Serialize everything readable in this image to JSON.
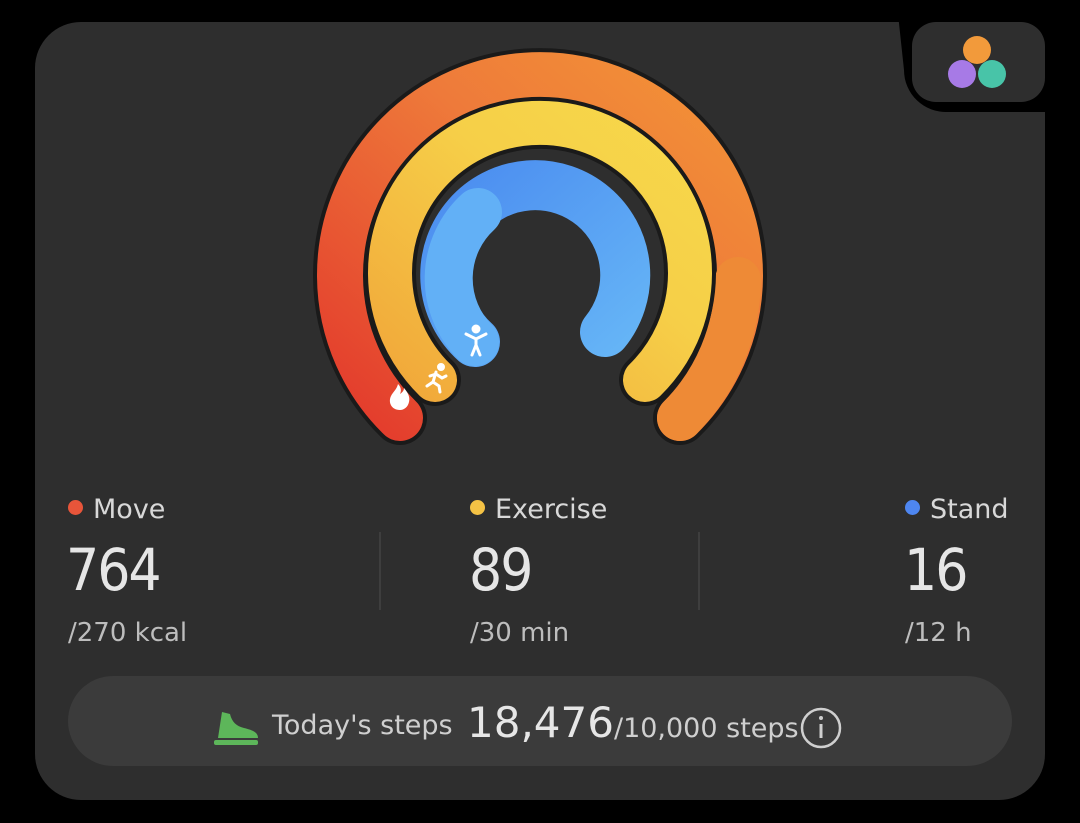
{
  "stats": [
    {
      "label": "Move",
      "value": "764",
      "goal": "/270 kcal"
    },
    {
      "label": "Exercise",
      "value": "89",
      "goal": "/30 min"
    },
    {
      "label": "Stand",
      "value": "16",
      "goal": "/12 h"
    }
  ],
  "steps": {
    "label": "Today's steps",
    "value": "18,476",
    "goal": "/10,000 steps"
  }
}
